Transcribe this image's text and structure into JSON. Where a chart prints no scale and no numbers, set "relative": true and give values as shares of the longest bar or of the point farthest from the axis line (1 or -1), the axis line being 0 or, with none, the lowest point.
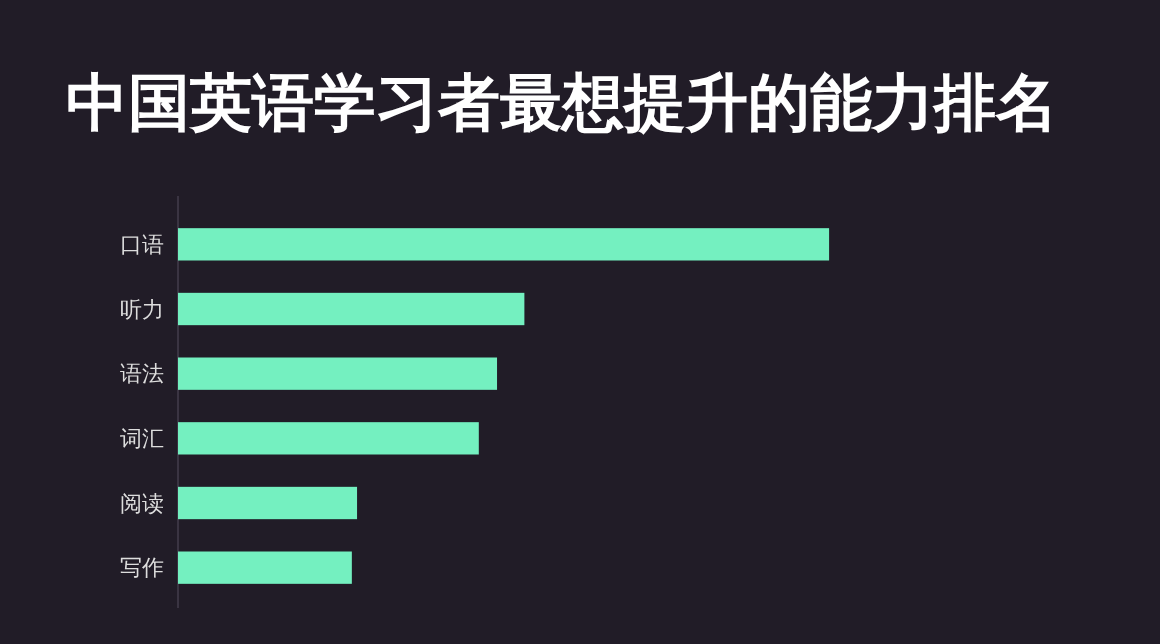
{
  "chart_data": {
    "type": "bar",
    "orientation": "horizontal",
    "relative": true,
    "title": "中国英语学习者最想提升的能力排名",
    "categories": [
      "口语",
      "听力",
      "语法",
      "词汇",
      "阅读",
      "写作"
    ],
    "values": [
      1,
      0.532,
      0.49,
      0.462,
      0.275,
      0.267
    ],
    "color": "#74f0c0"
  }
}
